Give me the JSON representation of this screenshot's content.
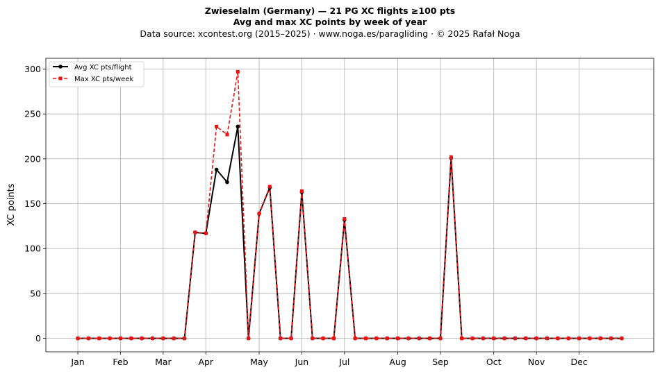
{
  "chart_data": {
    "type": "line",
    "title": "Zwieselalm (Germany)  —  21 PG XC flights ≥100 pts",
    "subtitle": "Avg and max XC points by week of year",
    "source": "Data source: xcontest.org (2015–2025)  ·  www.noga.es/paragliding  ·  © 2025 Rafał Noga",
    "xlabel": "",
    "ylabel": "XC points",
    "xlim": [
      -3,
      54
    ],
    "ylim": [
      -15,
      312
    ],
    "x_ticks": [
      {
        "label": "Jan",
        "x": 0
      },
      {
        "label": "Feb",
        "x": 4
      },
      {
        "label": "Mar",
        "x": 8
      },
      {
        "label": "Apr",
        "x": 12
      },
      {
        "label": "May",
        "x": 17
      },
      {
        "label": "Jun",
        "x": 21
      },
      {
        "label": "Jul",
        "x": 25
      },
      {
        "label": "Aug",
        "x": 30
      },
      {
        "label": "Sep",
        "x": 34
      },
      {
        "label": "Oct",
        "x": 39
      },
      {
        "label": "Nov",
        "x": 43
      },
      {
        "label": "Dec",
        "x": 47
      }
    ],
    "y_ticks": [
      0,
      50,
      100,
      150,
      200,
      250,
      300
    ],
    "grid": true,
    "legend_position": "top-left",
    "x": [
      0,
      1,
      2,
      3,
      4,
      5,
      6,
      7,
      8,
      9,
      10,
      11,
      12,
      13,
      14,
      15,
      16,
      17,
      18,
      19,
      20,
      21,
      22,
      23,
      24,
      25,
      26,
      27,
      28,
      29,
      30,
      31,
      32,
      33,
      34,
      35,
      36,
      37,
      38,
      39,
      40,
      41,
      42,
      43,
      44,
      45,
      46,
      47,
      48,
      49,
      50,
      51
    ],
    "series": [
      {
        "name": "Avg XC pts/flight",
        "color": "#000000",
        "style": "solid-circle",
        "values": [
          0,
          0,
          0,
          0,
          0,
          0,
          0,
          0,
          0,
          0,
          0,
          118,
          117,
          188,
          174,
          236,
          0,
          139,
          168,
          0,
          0,
          163,
          0,
          0,
          0,
          132,
          0,
          0,
          0,
          0,
          0,
          0,
          0,
          0,
          0,
          201,
          0,
          0,
          0,
          0,
          0,
          0,
          0,
          0,
          0,
          0,
          0,
          0,
          0,
          0,
          0,
          0
        ]
      },
      {
        "name": "Max XC pts/week",
        "color": "#ee1111",
        "style": "dashed-square",
        "values": [
          0,
          0,
          0,
          0,
          0,
          0,
          0,
          0,
          0,
          0,
          0,
          118,
          117,
          236,
          227,
          297,
          0,
          139,
          169,
          0,
          0,
          164,
          0,
          0,
          0,
          133,
          0,
          0,
          0,
          0,
          0,
          0,
          0,
          0,
          0,
          202,
          0,
          0,
          0,
          0,
          0,
          0,
          0,
          0,
          0,
          0,
          0,
          0,
          0,
          0,
          0,
          0
        ]
      }
    ]
  }
}
